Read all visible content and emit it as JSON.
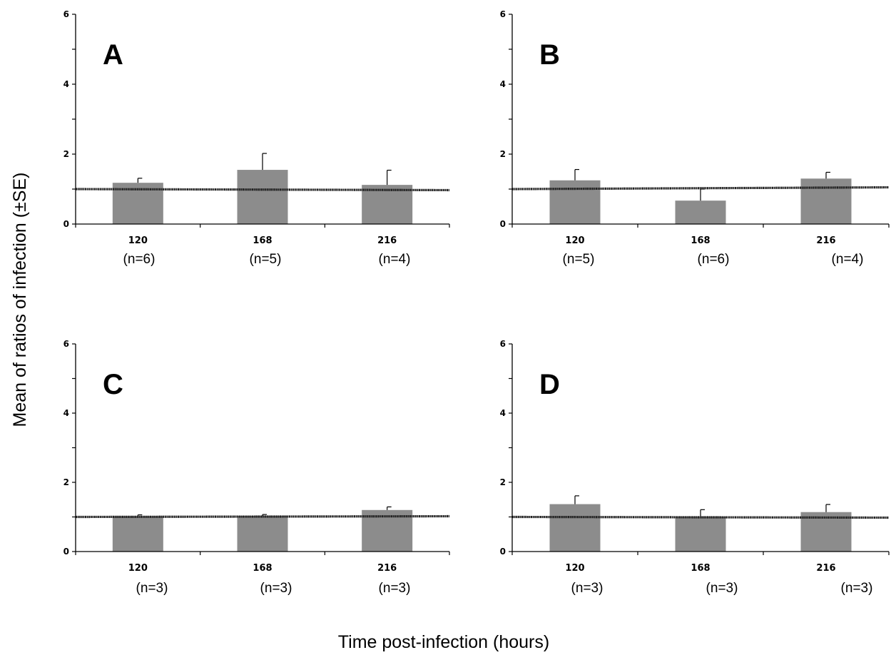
{
  "ylabel": "Mean of ratios of infection (±SE)",
  "xlabel": "Time post-infection (hours)",
  "colors": {
    "bar": "#8c8c8c",
    "reference_line": "#222222",
    "axis": "#000000"
  },
  "chart_data": [
    {
      "type": "bar",
      "panel": "A",
      "categories": [
        "120",
        "168",
        "216"
      ],
      "values": [
        1.18,
        1.55,
        1.12
      ],
      "errors": [
        0.13,
        0.47,
        0.42
      ],
      "n_labels": [
        "(n=6)",
        "(n=5)",
        "(n=4)"
      ],
      "reference_line": [
        1.0,
        0.97
      ],
      "ylim": [
        0,
        6
      ],
      "yticks": [
        "0",
        "2",
        "4",
        "6"
      ],
      "grid": false
    },
    {
      "type": "bar",
      "panel": "B",
      "categories": [
        "120",
        "168",
        "216"
      ],
      "values": [
        1.25,
        0.67,
        1.3
      ],
      "errors": [
        0.31,
        0.33,
        0.18
      ],
      "n_labels": [
        "(n=5)",
        "(n=6)",
        "(n=4)"
      ],
      "reference_line": [
        1.0,
        1.05
      ],
      "ylim": [
        0,
        6
      ],
      "yticks": [
        "0",
        "2",
        "4",
        "6"
      ],
      "grid": false
    },
    {
      "type": "bar",
      "panel": "C",
      "categories": [
        "120",
        "168",
        "216"
      ],
      "values": [
        1.02,
        1.03,
        1.2
      ],
      "errors": [
        0.04,
        0.04,
        0.09
      ],
      "n_labels": [
        "(n=3)",
        "(n=3)",
        "(n=3)"
      ],
      "reference_line": [
        1.0,
        1.02
      ],
      "ylim": [
        0,
        6
      ],
      "yticks": [
        "0",
        "2",
        "4",
        "6"
      ],
      "grid": false
    },
    {
      "type": "bar",
      "panel": "D",
      "categories": [
        "120",
        "168",
        "216"
      ],
      "values": [
        1.37,
        1.01,
        1.14
      ],
      "errors": [
        0.24,
        0.2,
        0.22
      ],
      "n_labels": [
        "(n=3)",
        "(n=3)",
        "(n=3)"
      ],
      "reference_line": [
        1.0,
        0.98
      ],
      "ylim": [
        0,
        6
      ],
      "yticks": [
        "0",
        "2",
        "4",
        "6"
      ],
      "grid": false
    }
  ]
}
